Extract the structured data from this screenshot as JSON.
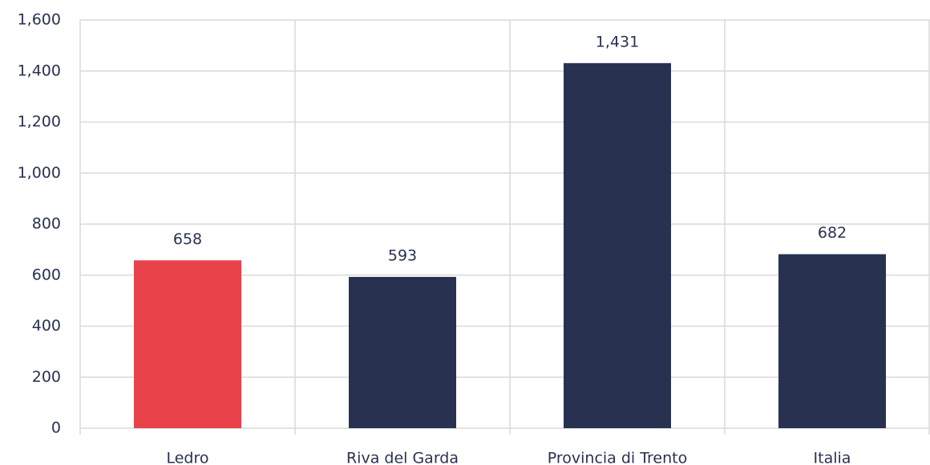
{
  "chart_data": {
    "type": "bar",
    "categories": [
      "Ledro",
      "Riva del Garda",
      "Provincia di Trento",
      "Italia"
    ],
    "values": [
      658,
      593,
      1431,
      682
    ],
    "value_labels": [
      "658",
      "593",
      "1,431",
      "682"
    ],
    "colors": [
      "#e8424a",
      "#283250",
      "#283250",
      "#283250"
    ],
    "ylim": [
      0,
      1600
    ],
    "yticks": [
      0,
      200,
      400,
      600,
      800,
      {
        "value": 1000,
        "label": "1,000"
      },
      {
        "value": 1200,
        "label": "1,200"
      },
      {
        "value": 1400,
        "label": "1,400"
      },
      {
        "value": 1600,
        "label": "1,600"
      }
    ],
    "grid": true
  }
}
